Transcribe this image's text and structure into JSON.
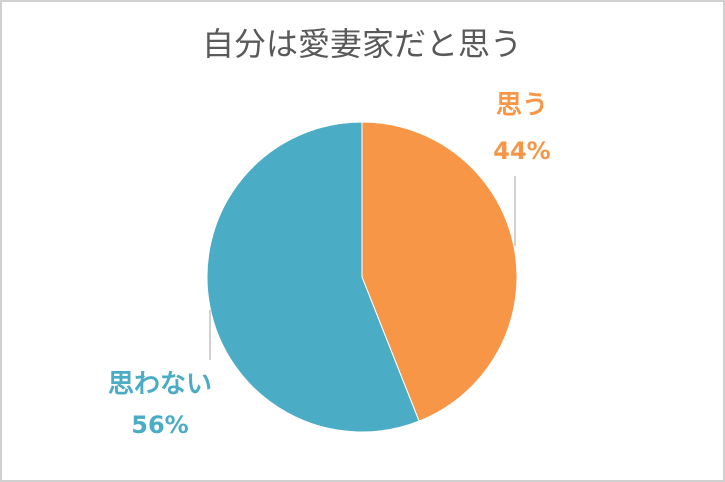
{
  "chart_data": {
    "type": "pie",
    "title": "自分は愛妻家だと思う",
    "categories": [
      "思う",
      "思わない"
    ],
    "values": [
      44,
      56
    ],
    "value_labels": [
      "44%",
      "56%"
    ],
    "colors": [
      "#f79646",
      "#4bacc6"
    ]
  }
}
